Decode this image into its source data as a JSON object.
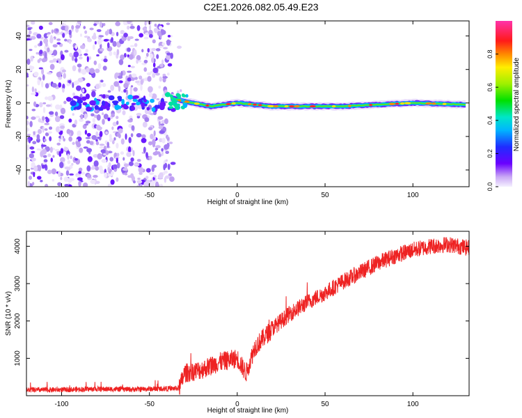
{
  "title": "C2E1.2026.082.05.49.E23",
  "chart_data": [
    {
      "type": "heatmap",
      "title": "",
      "xlabel": "Height of straight line (km)",
      "ylabel": "Frequency (Hz)",
      "xlim": [
        -120,
        132
      ],
      "ylim": [
        -50,
        49
      ],
      "xticks": [
        -100,
        -50,
        0,
        50,
        100
      ],
      "yticks": [
        -40,
        -20,
        0,
        20,
        40
      ],
      "colorbar": {
        "label": "Normalized spectral amplitude",
        "range": [
          0.0,
          1.0
        ],
        "ticks": [
          "0.0",
          "0.2",
          "0.4",
          "0.6",
          "0.8"
        ]
      },
      "ridge": {
        "description_values_km_hz": [
          [
            -38,
            3
          ],
          [
            -30,
            1
          ],
          [
            -15,
            -2
          ],
          [
            0,
            0
          ],
          [
            20,
            -2
          ],
          [
            60,
            -2
          ],
          [
            100,
            0
          ],
          [
            130,
            -1
          ]
        ]
      },
      "noise_region_x": [
        -120,
        -38
      ]
    },
    {
      "type": "line",
      "title": "",
      "xlabel": "Height of straight line (km)",
      "ylabel": "SNR (10 * v/v)",
      "xlim": [
        -120,
        132
      ],
      "ylim": [
        0,
        4400
      ],
      "xticks": [
        -100,
        -50,
        0,
        50,
        100
      ],
      "yticks": [
        1000,
        2000,
        3000,
        4000
      ],
      "series": [
        {
          "name": "SNR",
          "color": "#ee2222",
          "x": [
            -120,
            -100,
            -80,
            -60,
            -40,
            -33,
            -30,
            -20,
            -10,
            0,
            5,
            10,
            20,
            30,
            40,
            50,
            60,
            70,
            80,
            90,
            100,
            110,
            120,
            132
          ],
          "y": [
            150,
            160,
            180,
            170,
            190,
            200,
            600,
            700,
            900,
            1000,
            600,
            1300,
            1800,
            2200,
            2500,
            2750,
            3050,
            3300,
            3550,
            3750,
            3900,
            4000,
            4050,
            3950
          ]
        }
      ]
    }
  ]
}
